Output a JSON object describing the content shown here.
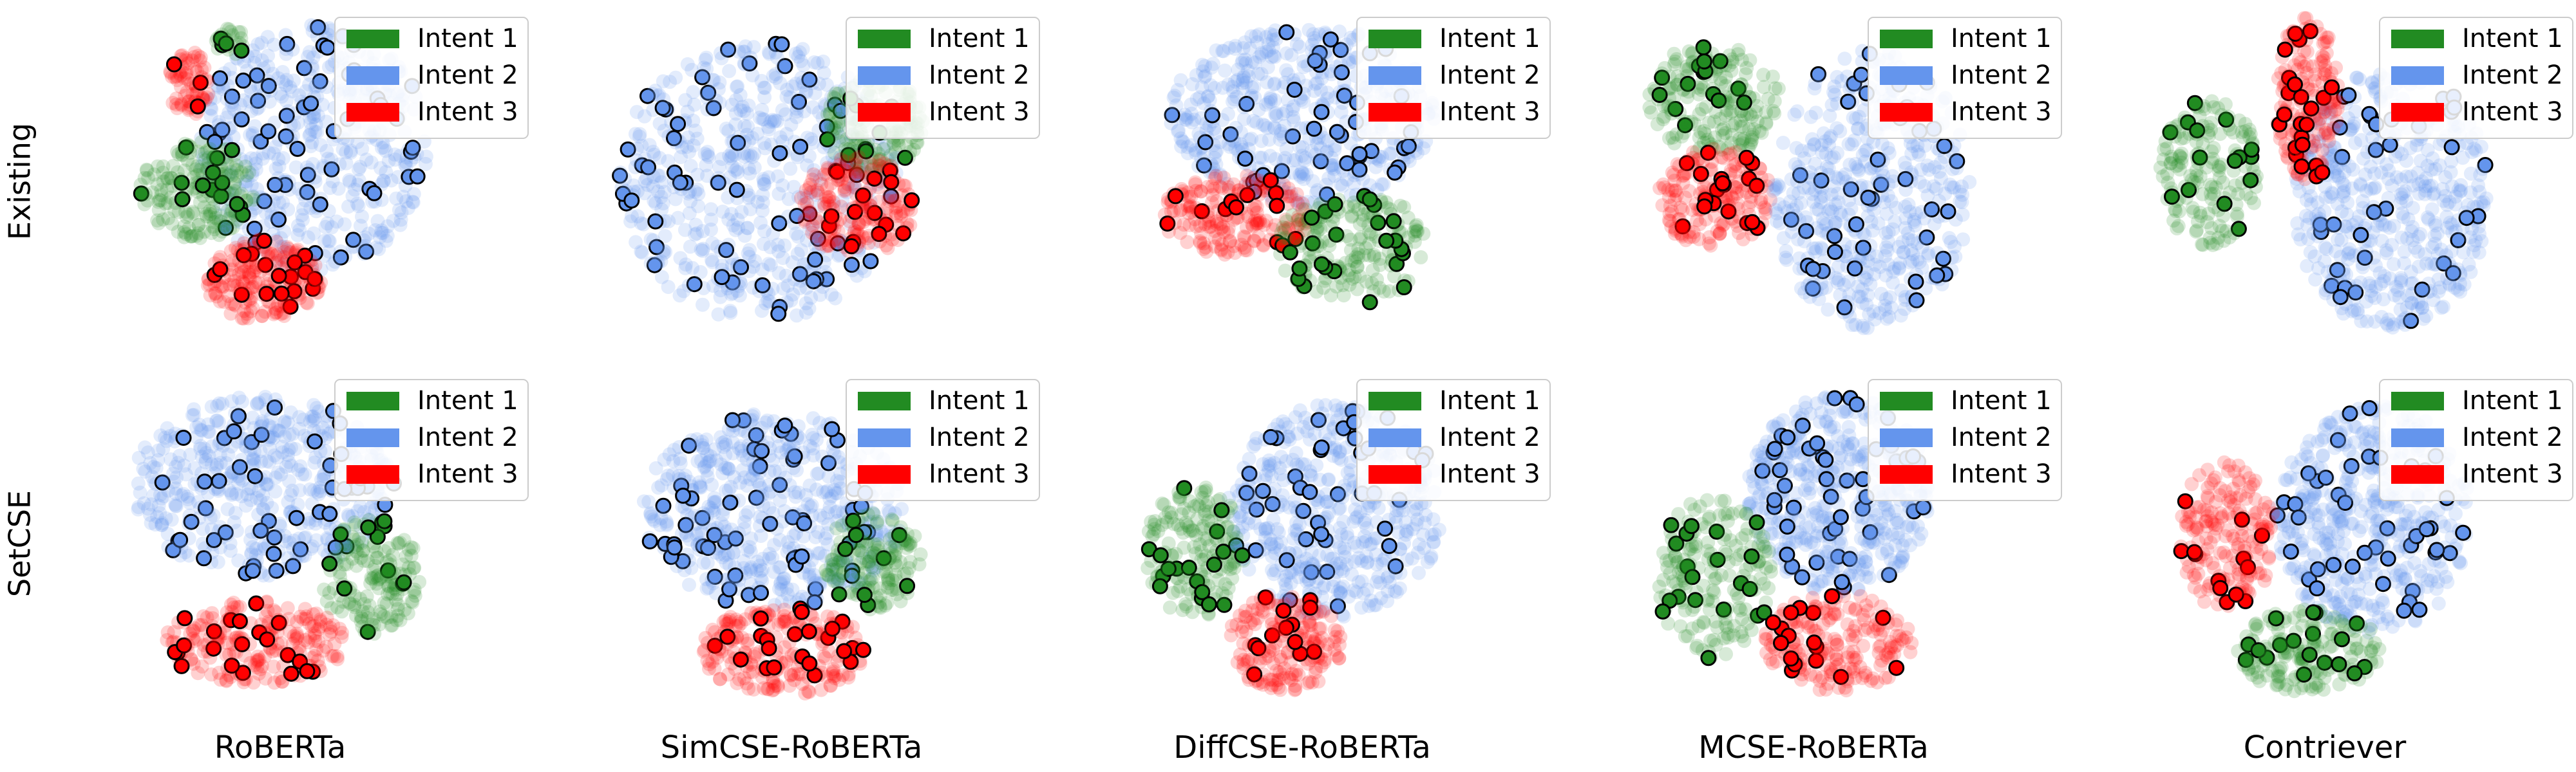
{
  "figure": {
    "rows": [
      "Existing",
      "SetCSE"
    ],
    "columns": [
      "RoBERTa",
      "SimCSE-RoBERTa",
      "DiffCSE-RoBERTa",
      "MCSE-RoBERTa",
      "Contriever"
    ],
    "legend": [
      {
        "name": "Intent 1",
        "color": "#228b22"
      },
      {
        "name": "Intent 2",
        "color": "#6495ed"
      },
      {
        "name": "Intent 3",
        "color": "#ff0000"
      }
    ]
  }
}
